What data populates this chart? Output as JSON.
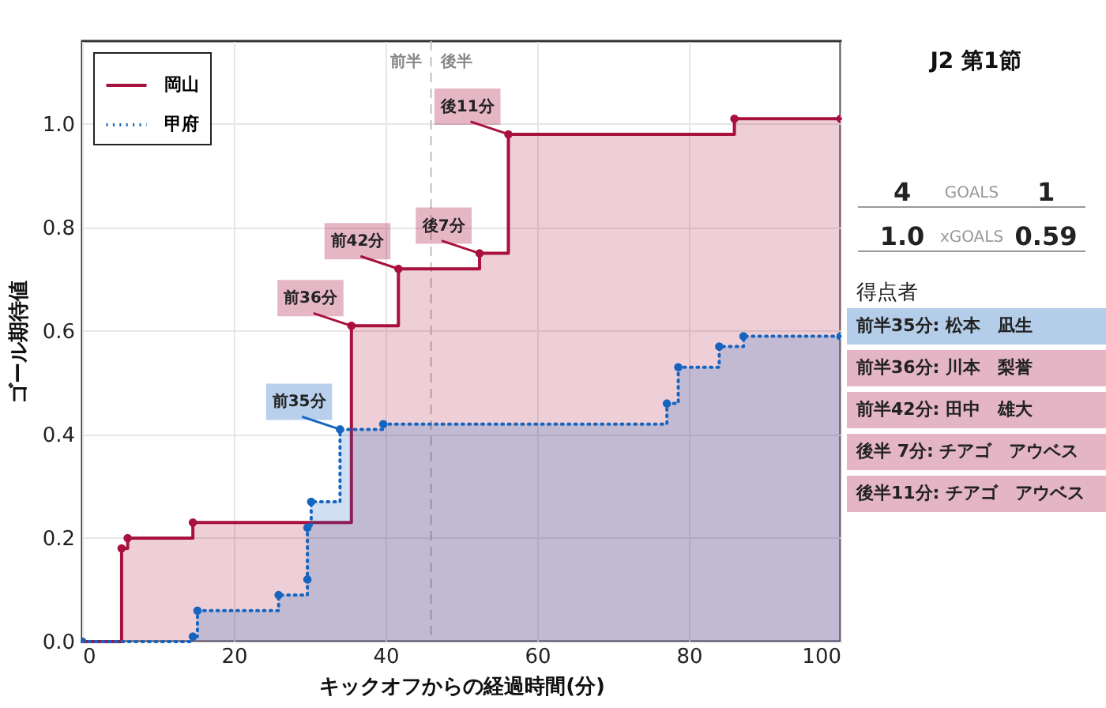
{
  "chart_data": [
    {
      "type": "step",
      "xlabel": "キックオフからの経過時間(分)",
      "ylabel": "ゴール期待値",
      "xlim": [
        0,
        100
      ],
      "xticks": [
        0,
        20,
        40,
        60,
        80,
        100
      ],
      "ylim": [
        0,
        1.16
      ],
      "yticks": [
        {
          "value": 0,
          "label": "0.0"
        },
        0.2,
        0.4,
        0.6,
        0.8,
        {
          "value": 1,
          "label": "1.0"
        }
      ],
      "grid": true,
      "legend": "top left",
      "marker": "circle",
      "series": [
        {
          "name": "岡山",
          "color": "#a8103e",
          "line_style": "solid",
          "x": [
            0,
            5.2,
            6.0,
            14.6,
            35.5,
            41.7,
            52.4,
            56.2,
            86.0,
            100
          ],
          "values": [
            0,
            0.18,
            0.2,
            0.23,
            0.61,
            0.72,
            0.75,
            0.98,
            1.01,
            1.01
          ]
        },
        {
          "name": "甲府",
          "color": "#1565c0",
          "line_style": "dotted",
          "x": [
            0,
            14.6,
            15.2,
            25.9,
            29.7,
            29.7,
            30.2,
            34.0,
            39.7,
            77.1,
            78.6,
            84.0,
            87.2,
            100
          ],
          "values": [
            0,
            0.01,
            0.06,
            0.09,
            0.12,
            0.22,
            0.27,
            0.41,
            0.42,
            0.46,
            0.53,
            0.57,
            0.59,
            0.59
          ]
        }
      ],
      "ref_lines": [
        {
          "axis": "x",
          "value": 46,
          "color": "#c0c0c0",
          "line_style": "dashed"
        }
      ],
      "annotations": [
        "前半",
        "後半",
        {
          "text": "前35分",
          "x": 34.0,
          "y": 0.41
        },
        {
          "text": "前36分",
          "x": 35.5,
          "y": 0.61
        },
        {
          "text": "前42分",
          "x": 41.7,
          "y": 0.72
        },
        {
          "text": "後7分",
          "x": 52.4,
          "y": 0.75
        },
        {
          "text": "後11分",
          "x": 56.2,
          "y": 0.98
        }
      ]
    },
    {
      "type": "other",
      "title": "J2 第1節",
      "annotations": [
        "4",
        "GOALS",
        "1",
        "1.0",
        "xGOALS",
        "0.59",
        "得点者"
      ],
      "categories": [
        "前半35分: 松本　凪生",
        "前半36分: 川本　梨誉",
        "前半42分: 田中　雄大",
        "後半 7分: チアゴ　アウベス",
        "後半11分: チアゴ　アウベス"
      ],
      "colors": [
        "#b4cde8",
        "#e4b5c5",
        "#e4b5c5",
        "#e4b5c5",
        "#e4b5c5"
      ]
    }
  ]
}
